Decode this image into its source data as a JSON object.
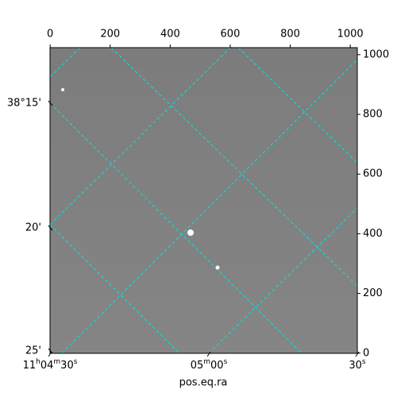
{
  "chart_data": {
    "type": "image",
    "xlabel": "pos.eq.ra",
    "xlim": [
      -0.5,
      1023.5
    ],
    "ylim": [
      -0.5,
      1023.5
    ],
    "xticks": [
      0,
      200,
      400,
      600,
      800,
      1000
    ],
    "yticks": [
      0,
      200,
      400,
      600,
      800,
      1000
    ],
    "ra_ticks": [
      "11h04m30s",
      "05m00s",
      "30s"
    ],
    "dec_ticks": [
      "38°15'",
      "20'",
      "25'"
    ],
    "grid_color": "#00e5e5"
  }
}
